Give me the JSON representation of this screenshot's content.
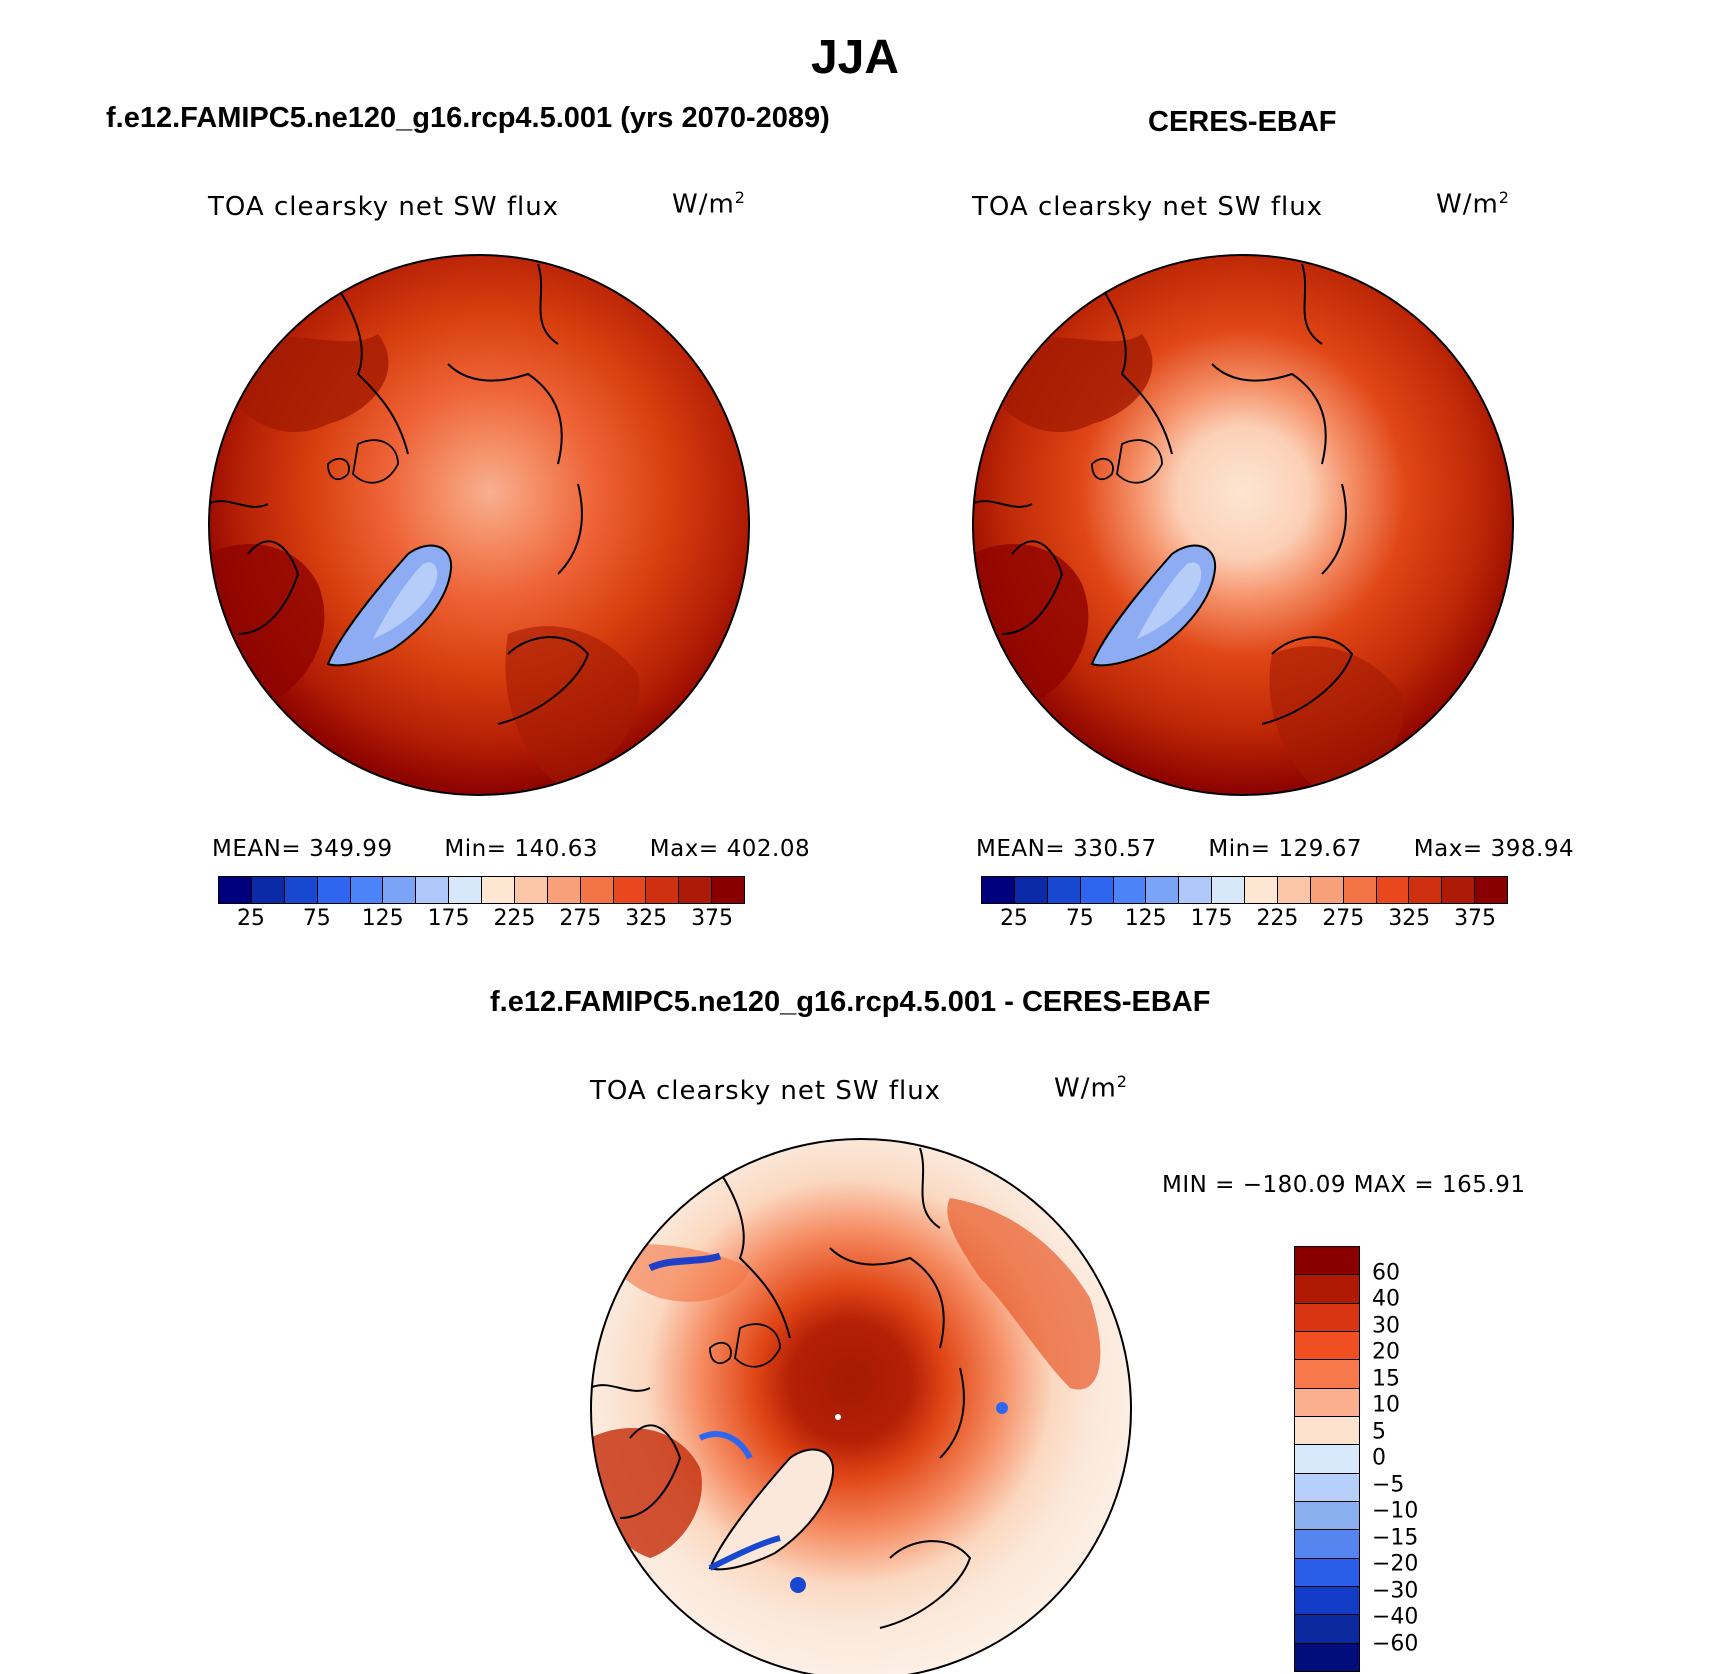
{
  "title": "JJA",
  "panels": {
    "model": {
      "title": "f.e12.FAMIPC5.ne120_g16.rcp4.5.001 (yrs 2070-2089)",
      "variable": "TOA clearsky net SW flux",
      "units_base": "W/m",
      "units_exp": "2",
      "mean_label": "MEAN=",
      "mean": "349.99",
      "min_label": "Min=",
      "min": "140.63",
      "max_label": "Max=",
      "max": "402.08"
    },
    "obs": {
      "title": "CERES-EBAF",
      "variable": "TOA clearsky net SW flux",
      "units_base": "W/m",
      "units_exp": "2",
      "mean_label": "MEAN=",
      "mean": "330.57",
      "min_label": "Min=",
      "min": "129.67",
      "max_label": "Max=",
      "max": "398.94"
    },
    "diff": {
      "title": "f.e12.FAMIPC5.ne120_g16.rcp4.5.001 - CERES-EBAF",
      "variable": "TOA clearsky net SW flux",
      "units_base": "W/m",
      "units_exp": "2",
      "minmax": "MIN = −180.09  MAX = 165.91"
    }
  },
  "colorbar_abs": {
    "colors": [
      "#00007f",
      "#0a2aa8",
      "#1848d0",
      "#2f66f0",
      "#4c84f8",
      "#7ba4f6",
      "#aec8f9",
      "#d7e8fb",
      "#fde6d2",
      "#fbc6a8",
      "#f7a07a",
      "#f37444",
      "#e9481e",
      "#cf3010",
      "#ad1a07",
      "#8a0000"
    ],
    "tick_labels": [
      "25",
      "75",
      "125",
      "175",
      "225",
      "275",
      "325",
      "375"
    ]
  },
  "colorbar_diff": {
    "colors": [
      "#8a0000",
      "#b01a05",
      "#da3512",
      "#f04f22",
      "#f7784a",
      "#fab08e",
      "#fde3cf",
      "#d7e9fb",
      "#b7cffb",
      "#8aafef",
      "#5585ee",
      "#2a5de8",
      "#123bc6",
      "#0b2aa0",
      "#000d7a"
    ],
    "tick_labels": [
      "60",
      "40",
      "30",
      "20",
      "15",
      "10",
      "5",
      "0",
      "−5",
      "−10",
      "−15",
      "−20",
      "−30",
      "−40",
      "−60"
    ]
  }
}
